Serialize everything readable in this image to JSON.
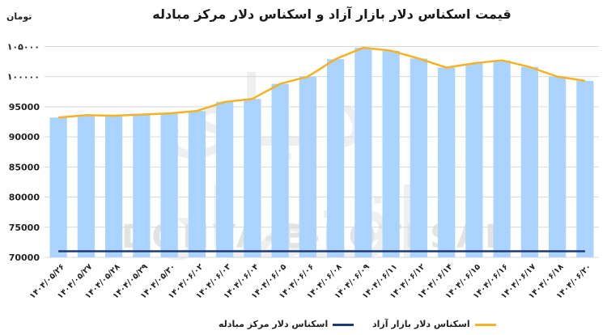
{
  "title": "قیمت اسکناس دلار بازار آزاد و اسکناس دلار مرکز مبادله",
  "unit": "تومان",
  "watermark": "DONYA-E-EQTESAD",
  "colors": {
    "bar": "#aad3ff",
    "free_market": "#f5b324",
    "exchange_center": "#1f3b73"
  },
  "chart_data": {
    "type": "bar",
    "ylim": [
      70000,
      106000
    ],
    "yticks": [
      "۱۰۵۰۰۰",
      "۱۰۰۰۰۰",
      "95000",
      "90000",
      "85000",
      "80000",
      "75000",
      "70000"
    ],
    "ytick_values": [
      105000,
      100000,
      95000,
      90000,
      85000,
      80000,
      75000,
      70000
    ],
    "categories": [
      "۱۴۰۴/۰۵/۲۶",
      "۱۴۰۴/۰۵/۲۷",
      "۱۴۰۴/۰۵/۲۸",
      "۱۴۰۴/۰۵/۲۹",
      "۱۴۰۴/۰۵/۳۰",
      "۱۴۰۴/۰۶/۰۲",
      "۱۴۰۴/۰۶/۰۳",
      "۱۴۰۴/۰۶/۰۴",
      "۱۴۰۴/۰۶/۰۵",
      "۱۴۰۴/۰۶/۰۶",
      "۱۴۰۴/۰۶/۰۸",
      "۱۴۰۴/۰۶/۰۹",
      "۱۴۰۴/۰۶/۱۱",
      "۱۴۰۴/۰۶/۱۲",
      "۱۴۰۴/۰۶/۱۴",
      "۱۴۰۴/۰۶/۱۵",
      "۱۴۰۴/۰۶/۱۶",
      "۱۴۰۴/۰۶/۱۷",
      "۱۴۰۴/۰۶/۱۸",
      "۱۴۰۴/۰۶/۲۰"
    ],
    "series": [
      {
        "name": "اسکناس دلار بازار آزاد",
        "style": "bar+line",
        "values": [
          93200,
          93600,
          93500,
          93700,
          93900,
          94300,
          95800,
          96300,
          98800,
          100000,
          102900,
          104800,
          104300,
          103000,
          101500,
          102200,
          102700,
          101600,
          100000,
          99300
        ]
      },
      {
        "name": "اسکناس دلار مرکز مبادله",
        "style": "line",
        "values": [
          71000,
          71000,
          71000,
          71000,
          71000,
          71000,
          71000,
          71000,
          71000,
          71000,
          71000,
          71000,
          71000,
          71000,
          71000,
          71000,
          71000,
          71000,
          71000,
          71000
        ]
      }
    ],
    "grid": true,
    "legend": "bottom"
  }
}
